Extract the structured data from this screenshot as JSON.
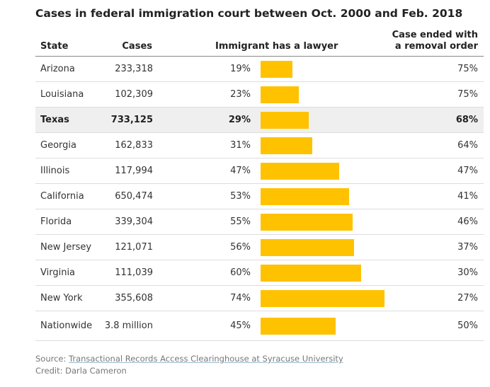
{
  "title": "Cases in federal immigration court between Oct. 2000 and Feb. 2018",
  "table": {
    "columns": [
      "State",
      "Cases",
      "Immigrant has a lawyer",
      "Case ended with a removal order"
    ],
    "rows": [
      {
        "state": "Arizona",
        "cases": "233,318",
        "lawyer": {
          "value": 19,
          "label": "19%"
        },
        "removal": "75%"
      },
      {
        "state": "Louisiana",
        "cases": "102,309",
        "lawyer": {
          "value": 23,
          "label": "23%"
        },
        "removal": "75%"
      },
      {
        "state": "Texas",
        "cases": "733,125",
        "lawyer": {
          "value": 29,
          "label": "29%"
        },
        "removal": "68%",
        "highlight": true
      },
      {
        "state": "Georgia",
        "cases": "162,833",
        "lawyer": {
          "value": 31,
          "label": "31%"
        },
        "removal": "64%"
      },
      {
        "state": "Illinois",
        "cases": "117,994",
        "lawyer": {
          "value": 47,
          "label": "47%"
        },
        "removal": "47%"
      },
      {
        "state": "California",
        "cases": "650,474",
        "lawyer": {
          "value": 53,
          "label": "53%"
        },
        "removal": "41%"
      },
      {
        "state": "Florida",
        "cases": "339,304",
        "lawyer": {
          "value": 55,
          "label": "55%"
        },
        "removal": "46%"
      },
      {
        "state": "New Jersey",
        "cases": "121,071",
        "lawyer": {
          "value": 56,
          "label": "56%"
        },
        "removal": "37%"
      },
      {
        "state": "Virginia",
        "cases": "111,039",
        "lawyer": {
          "value": 60,
          "label": "60%"
        },
        "removal": "30%"
      },
      {
        "state": "New York",
        "cases": "355,608",
        "lawyer": {
          "value": 74,
          "label": "74%"
        },
        "removal": "27%"
      },
      {
        "state": "Nationwide",
        "cases": "3.8 million",
        "lawyer": {
          "value": 45,
          "label": "45%"
        },
        "removal": "50%"
      }
    ],
    "bar_color": "#ffc200"
  },
  "footer": {
    "source_label": "Source:",
    "source": "Transactional Records Access Clearinghouse at Syracuse University",
    "credit": "Credit: Darla Cameron"
  }
}
